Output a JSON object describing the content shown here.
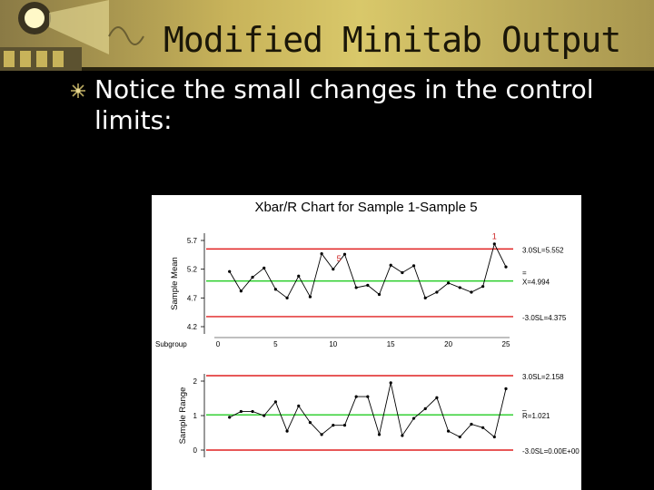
{
  "slide": {
    "title": "Modified Minitab Output",
    "bullet_text": "Notice the small changes in the control limits:"
  },
  "colors": {
    "header": "#c8b35a",
    "limit_line": "#e02020",
    "center_line": "#22cc22",
    "data_line": "#000000",
    "flag_text": "#cc2020"
  },
  "chart_data": [
    {
      "type": "line",
      "title": "Xbar/R Chart for Sample 1-Sample 5",
      "ylabel": "Sample Mean",
      "xlabel": "Subgroup",
      "ylim": [
        4.2,
        5.7
      ],
      "xlim": [
        0,
        25
      ],
      "y_ticks": [
        "5.7",
        "5.2",
        "4.7",
        "4.2"
      ],
      "y_tick_values": [
        5.7,
        5.2,
        4.7,
        4.2
      ],
      "x_ticks": [
        "0",
        "5",
        "10",
        "15",
        "20",
        "25"
      ],
      "x_tick_values": [
        0,
        5,
        10,
        15,
        20,
        25
      ],
      "x": [
        1,
        2,
        3,
        4,
        5,
        6,
        7,
        8,
        9,
        10,
        11,
        12,
        13,
        14,
        15,
        16,
        17,
        18,
        19,
        20,
        21,
        22,
        23,
        24,
        25
      ],
      "values": [
        5.16,
        4.82,
        5.06,
        5.22,
        4.85,
        4.7,
        5.08,
        4.72,
        5.47,
        5.2,
        5.46,
        4.88,
        4.92,
        4.76,
        5.27,
        5.14,
        5.26,
        4.7,
        4.8,
        4.96,
        4.88,
        4.8,
        4.9,
        5.64,
        5.24
      ],
      "ucl": 5.552,
      "center": 4.994,
      "lcl": 4.375,
      "ucl_label": "3.0SL=5.552",
      "center_label_bar": "=",
      "center_label": "X=4.994",
      "lcl_label": "-3.0SL=4.375",
      "flags": [
        {
          "x": 10.5,
          "y": 5.34,
          "text": "5"
        },
        {
          "x": 24,
          "y": 5.72,
          "text": "1"
        }
      ]
    },
    {
      "type": "line",
      "ylabel": "Sample Range",
      "ylim": [
        0,
        2
      ],
      "y_ticks": [
        "2",
        "1",
        "0"
      ],
      "y_tick_values": [
        2,
        1,
        0
      ],
      "x": [
        1,
        2,
        3,
        4,
        5,
        6,
        7,
        8,
        9,
        10,
        11,
        12,
        13,
        14,
        15,
        16,
        17,
        18,
        19,
        20,
        21,
        22,
        23,
        24,
        25
      ],
      "values": [
        0.95,
        1.12,
        1.12,
        1.0,
        1.4,
        0.55,
        1.28,
        0.8,
        0.45,
        0.72,
        0.72,
        1.55,
        1.55,
        0.45,
        1.95,
        0.42,
        0.92,
        1.2,
        1.52,
        0.55,
        0.38,
        0.75,
        0.65,
        0.38,
        1.78
      ],
      "ucl": 2.158,
      "center": 1.021,
      "lcl": 0.0,
      "ucl_label": "3.0SL=2.158",
      "center_label_bar": "_",
      "center_label": "R=1.021",
      "lcl_label": "-3.0SL=0.00E+00"
    }
  ]
}
